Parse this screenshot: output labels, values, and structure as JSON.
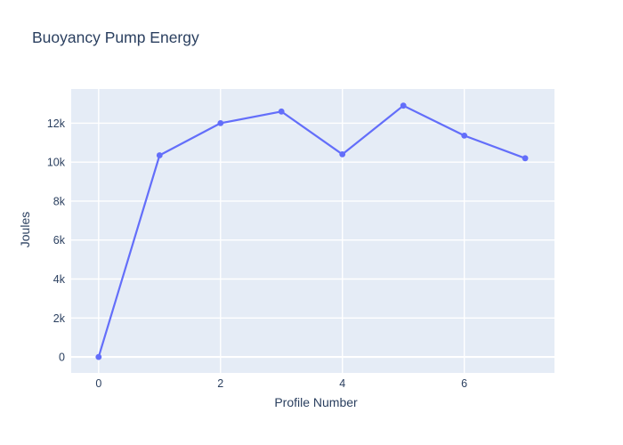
{
  "chart_data": {
    "type": "line",
    "title": "Buoyancy Pump Energy",
    "xlabel": "Profile Number",
    "ylabel": "Joules",
    "x": [
      0,
      1,
      2,
      3,
      4,
      5,
      6,
      7
    ],
    "y": [
      0,
      10350,
      12000,
      12600,
      10400,
      12900,
      11360,
      10200
    ],
    "xticks": {
      "values": [
        0,
        2,
        4,
        6
      ],
      "labels": [
        "0",
        "2",
        "4",
        "6"
      ]
    },
    "yticks": {
      "values": [
        0,
        2000,
        4000,
        6000,
        8000,
        10000,
        12000
      ],
      "labels": [
        "0",
        "2k",
        "4k",
        "6k",
        "8k",
        "10k",
        "12k"
      ]
    },
    "xlim": [
      -0.45,
      7.48
    ],
    "ylim": [
      -820,
      13755
    ],
    "grid": true,
    "legend": false,
    "marker": "circle",
    "line_color": "#636efa",
    "plot_bg": "#e5ecf6",
    "grid_color": "#ffffff",
    "text_color": "#2a3f5f"
  }
}
